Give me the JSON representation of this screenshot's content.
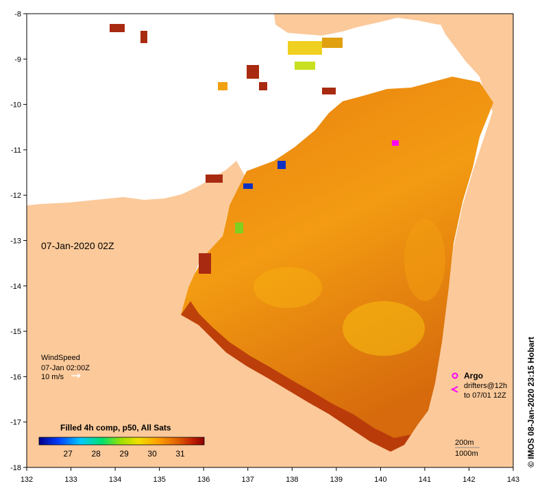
{
  "map": {
    "lon_range": [
      132,
      143
    ],
    "lat_range": [
      -18,
      -8
    ],
    "x_ticks": [
      "132",
      "133",
      "134",
      "135",
      "136",
      "137",
      "138",
      "139",
      "140",
      "141",
      "142",
      "143"
    ],
    "y_ticks": [
      "-8",
      "-9",
      "-10",
      "-11",
      "-12",
      "-13",
      "-14",
      "-15",
      "-16",
      "-17",
      "-18"
    ],
    "land_color": "#fcc99a",
    "background_color": "#ffffff"
  },
  "timestamp_label": "07-Jan-2020 02Z",
  "credit": "© IMOS 08-Jan-2020 23:15 Hobart",
  "wind_legend": {
    "title": "WindSpeed",
    "time": "07-Jan 02:00Z",
    "scale": "10 m/s"
  },
  "argo_legend": {
    "argo_label": "Argo",
    "drifters_label": "drifters@12h",
    "drifters_range": "to 07/01 12Z",
    "marker_color": "#ff00ff"
  },
  "depth_legend": {
    "contour_1": "200m",
    "contour_2": "1000m"
  },
  "colorbar": {
    "title": "Filled 4h comp, p50, All Sats",
    "tick_labels": [
      "27",
      "28",
      "29",
      "30",
      "31"
    ],
    "colors": [
      "#00008b",
      "#0040ff",
      "#00c8ff",
      "#00e070",
      "#a0e000",
      "#f0e000",
      "#ffa000",
      "#e06000",
      "#c02000",
      "#8b0000"
    ]
  }
}
